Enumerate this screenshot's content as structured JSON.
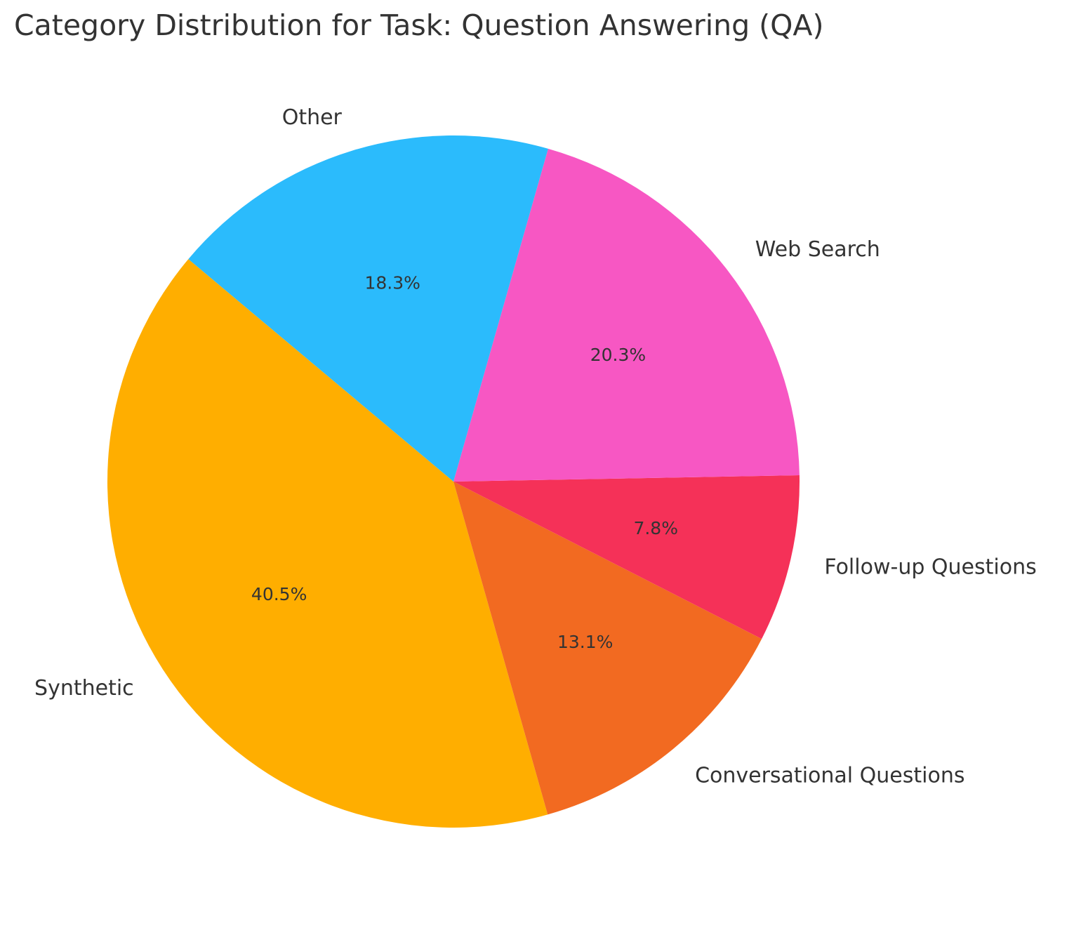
{
  "chart_data": {
    "type": "pie",
    "title": "Category Distribution for Task: Question Answering (QA)",
    "start_angle_deg": 140,
    "direction": "counterclockwise",
    "slices": [
      {
        "label": "Synthetic",
        "value": 40.5,
        "pct_label": "40.5%",
        "color": "#FFAE00"
      },
      {
        "label": "Conversational Questions",
        "value": 13.1,
        "pct_label": "13.1%",
        "color": "#F26A21"
      },
      {
        "label": "Follow-up Questions",
        "value": 7.8,
        "pct_label": "7.8%",
        "color": "#F53158"
      },
      {
        "label": "Web Search",
        "value": 20.3,
        "pct_label": "20.3%",
        "color": "#F757C3"
      },
      {
        "label": "Other",
        "value": 18.3,
        "pct_label": "18.3%",
        "color": "#2BBBFC"
      }
    ]
  }
}
